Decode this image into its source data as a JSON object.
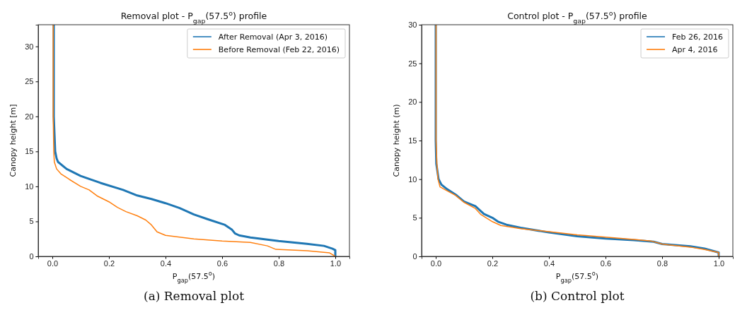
{
  "chart_data": [
    {
      "type": "line",
      "title": "Removal plot - P$_{gap}$(57.5$^{o}$) profile",
      "xlabel": "P$_{gap}$(57.5$^{o}$)",
      "ylabel": "Canopy height [m]",
      "xlim": [
        -0.05,
        1.05
      ],
      "ylim": [
        0,
        33.1
      ],
      "xticks": [
        {
          "value": 0,
          "label": "0.0"
        },
        {
          "value": 0.2,
          "label": "0.2"
        },
        {
          "value": 0.4,
          "label": "0.4"
        },
        {
          "value": 0.6,
          "label": "0.6"
        },
        {
          "value": 0.8,
          "label": "0.8"
        },
        {
          "value": 1,
          "label": "1.0"
        }
      ],
      "yticks": [
        0,
        5,
        10,
        15,
        20,
        25,
        30
      ],
      "legend": "top right",
      "grid": false,
      "annotations": [
        "(a) Removal plot"
      ],
      "series": [
        {
          "name": "After Removal (Apr 3, 2016)",
          "color": "#1f77b4",
          "x": [
            0.005,
            0.005,
            0.01,
            0.015,
            0.02,
            0.05,
            0.1,
            0.17,
            0.25,
            0.3,
            0.35,
            0.4,
            0.45,
            0.5,
            0.55,
            0.61,
            0.635,
            0.645,
            0.66,
            0.7,
            0.8,
            0.9,
            0.96,
            0.99,
            1.0,
            1.0
          ],
          "values": [
            33.1,
            20,
            15,
            14,
            13.5,
            12.5,
            11.5,
            10.5,
            9.5,
            8.7,
            8.2,
            7.6,
            6.9,
            6,
            5.3,
            4.5,
            3.8,
            3.3,
            3,
            2.7,
            2.2,
            1.8,
            1.5,
            1.1,
            0.9,
            0
          ]
        },
        {
          "name": "Before Removal (Feb 22, 2016)",
          "color": "#ff7f0e",
          "x": [
            0.003,
            0.003,
            0.005,
            0.007,
            0.015,
            0.03,
            0.06,
            0.1,
            0.13,
            0.16,
            0.2,
            0.23,
            0.26,
            0.3,
            0.33,
            0.35,
            0.37,
            0.4,
            0.5,
            0.6,
            0.7,
            0.76,
            0.79,
            0.9,
            0.98,
            1.0
          ],
          "values": [
            33.1,
            20,
            15,
            13.5,
            12.5,
            11.8,
            11,
            10,
            9.5,
            8.6,
            7.8,
            7,
            6.4,
            5.8,
            5.2,
            4.5,
            3.5,
            3,
            2.5,
            2.2,
            2,
            1.5,
            1,
            0.8,
            0.5,
            0
          ]
        }
      ]
    },
    {
      "type": "line",
      "title": "Control plot - P$_{gap}$(57.5$^{o}$) profile",
      "xlabel": "P$_{gap}$(57.5$^{o}$)",
      "ylabel": "Canopy height (m)",
      "xlim": [
        -0.05,
        1.05
      ],
      "ylim": [
        0,
        30
      ],
      "xticks": [
        {
          "value": 0,
          "label": "0.0"
        },
        {
          "value": 0.2,
          "label": "0.2"
        },
        {
          "value": 0.4,
          "label": "0.4"
        },
        {
          "value": 0.6,
          "label": "0.6"
        },
        {
          "value": 0.8,
          "label": "0.8"
        },
        {
          "value": 1,
          "label": "1.0"
        }
      ],
      "yticks": [
        0,
        5,
        10,
        15,
        20,
        25,
        30
      ],
      "legend": "top right",
      "grid": false,
      "annotations": [
        "(b) Control plot"
      ],
      "series": [
        {
          "name": "Feb 26, 2016",
          "color": "#1f77b4",
          "x": [
            0,
            0,
            0.002,
            0.01,
            0.02,
            0.04,
            0.07,
            0.1,
            0.14,
            0.17,
            0.2,
            0.22,
            0.25,
            0.3,
            0.4,
            0.5,
            0.6,
            0.7,
            0.77,
            0.8,
            0.9,
            0.95,
            1.0,
            1.0
          ],
          "values": [
            30,
            15,
            12,
            10,
            9.3,
            8.7,
            8,
            7.1,
            6.5,
            5.5,
            5,
            4.5,
            4.1,
            3.7,
            3.1,
            2.6,
            2.3,
            2.1,
            1.9,
            1.6,
            1.3,
            1.0,
            0.5,
            0
          ]
        },
        {
          "name": "Apr 4, 2016",
          "color": "#ff7f0e",
          "x": [
            0.001,
            0.001,
            0.004,
            0.008,
            0.015,
            0.04,
            0.07,
            0.1,
            0.14,
            0.16,
            0.2,
            0.23,
            0.3,
            0.4,
            0.5,
            0.6,
            0.7,
            0.76,
            0.8,
            0.82,
            0.9,
            0.95,
            1.0,
            1.0
          ],
          "values": [
            30,
            15,
            12,
            10,
            9,
            8.5,
            7.9,
            7,
            6.2,
            5.4,
            4.5,
            4,
            3.6,
            3.2,
            2.8,
            2.5,
            2.2,
            2,
            1.6,
            1.5,
            1.2,
            0.9,
            0.5,
            0
          ]
        }
      ]
    }
  ]
}
